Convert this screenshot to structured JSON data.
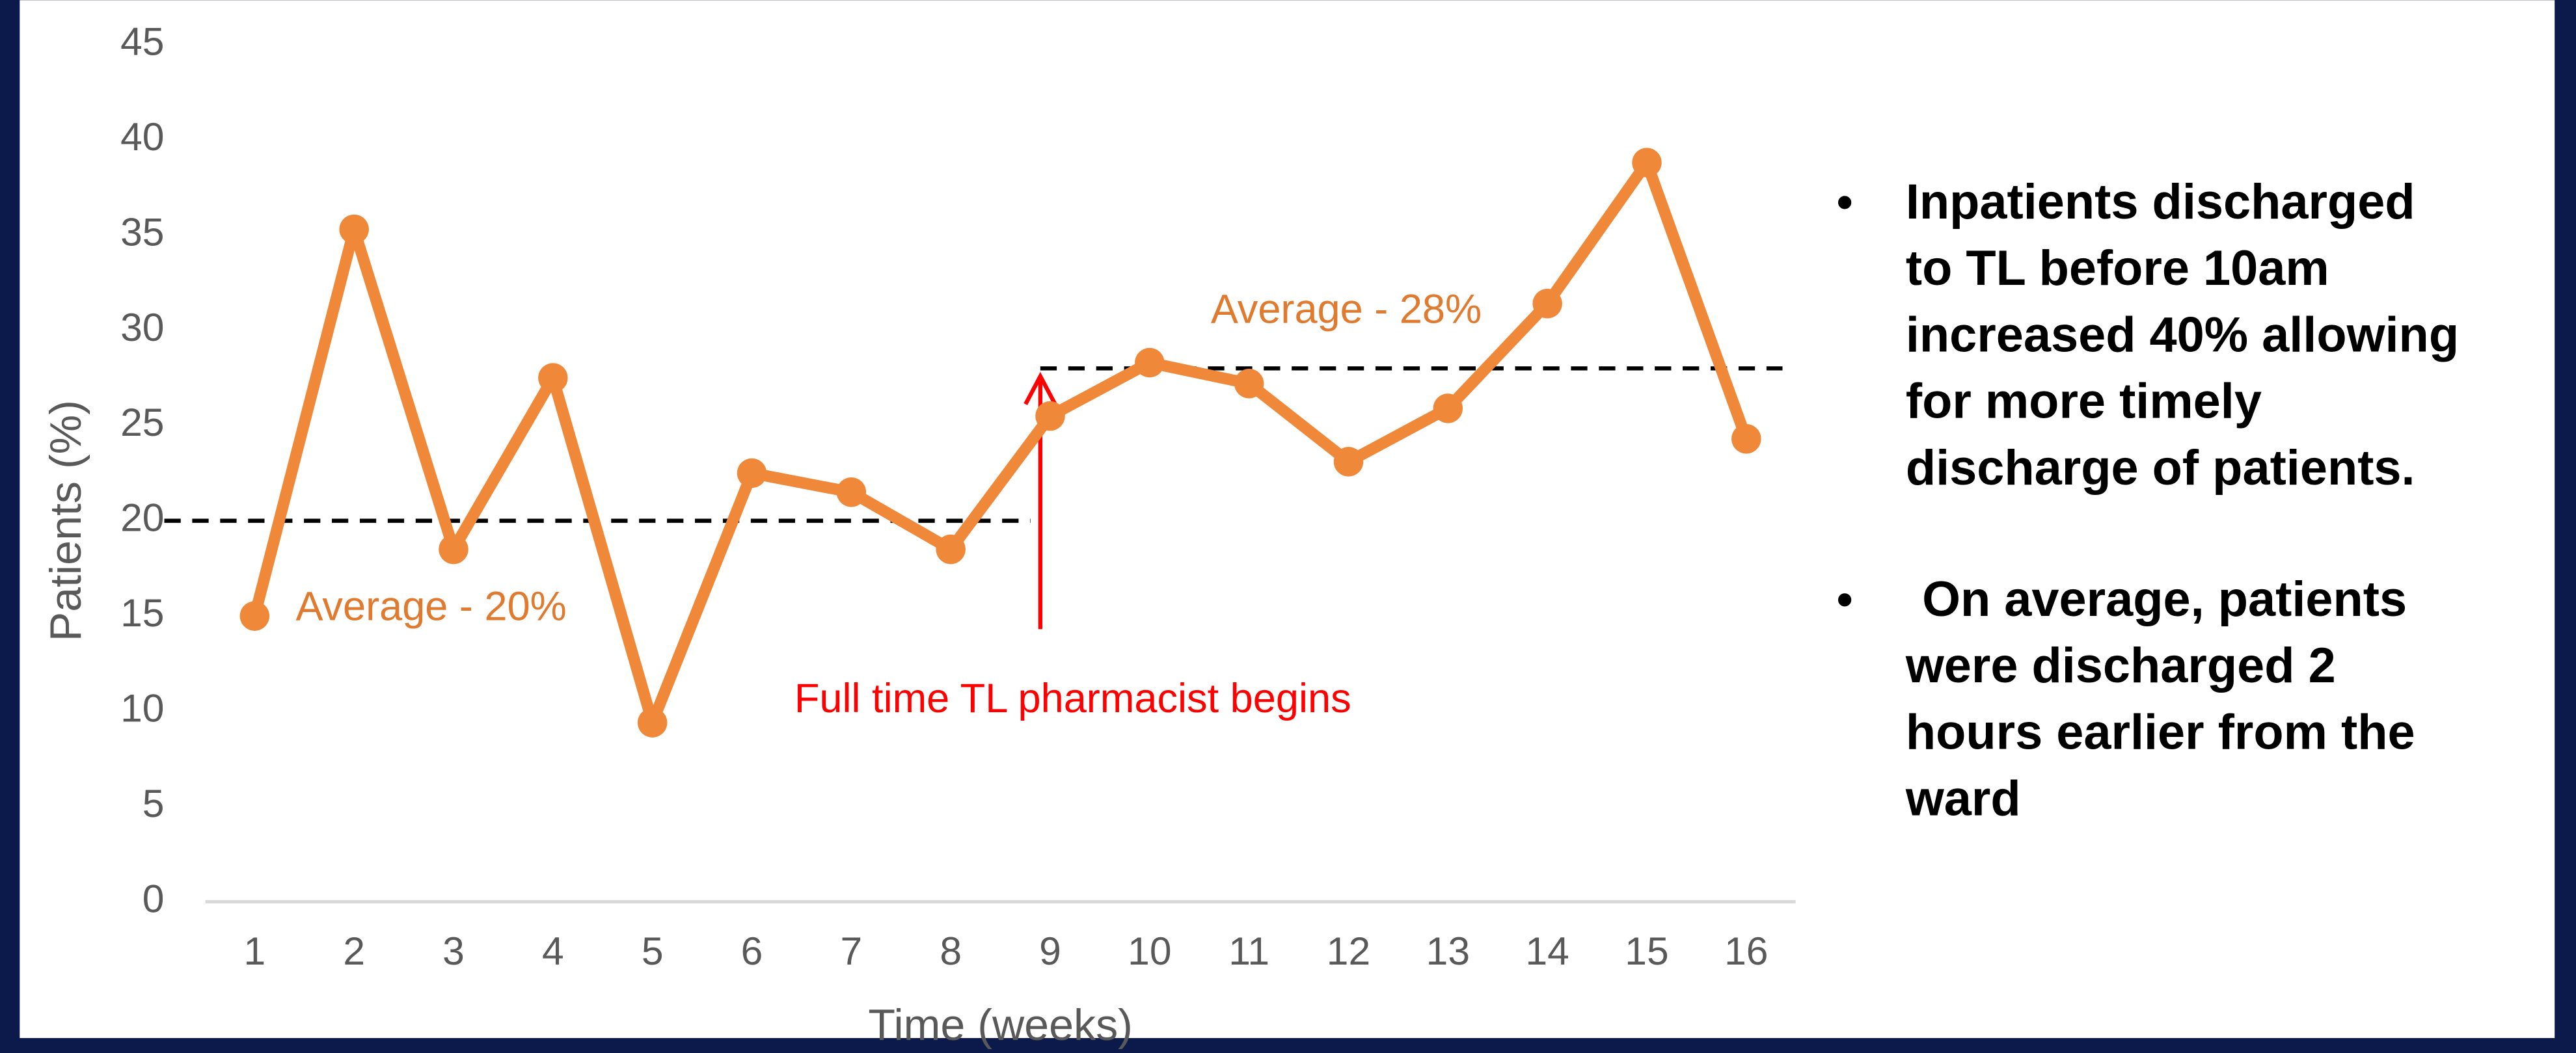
{
  "chart_data": {
    "type": "line",
    "categories": [
      "1",
      "2",
      "3",
      "4",
      "5",
      "6",
      "7",
      "8",
      "9",
      "10",
      "11",
      "12",
      "13",
      "14",
      "15",
      "16"
    ],
    "values": [
      15,
      35.3,
      18.5,
      27.5,
      9.4,
      22.5,
      21.5,
      18.5,
      25.5,
      28.3,
      27.2,
      23.1,
      25.9,
      31.4,
      38.8,
      24.3
    ],
    "color": "#f0883a",
    "ylim": [
      0,
      45
    ],
    "yticks": [
      0,
      5,
      10,
      15,
      20,
      25,
      30,
      35,
      40,
      45
    ],
    "xlabel": "Time (weeks)",
    "ylabel": "Patients (%)",
    "reference_lines": [
      {
        "value": 20,
        "label": "Average - 20%"
      },
      {
        "value": 28,
        "label": "Average - 28%"
      }
    ],
    "event": {
      "category": "9",
      "label": "Full time TL pharmacist begins"
    }
  },
  "bullets": [
    [
      "Inpatients discharged",
      "to TL before 10am",
      "increased 40% allowing",
      "for more timely",
      "discharge of patients."
    ],
    [
      "On average, patients",
      "were discharged 2",
      "hours earlier from the",
      "ward"
    ]
  ]
}
